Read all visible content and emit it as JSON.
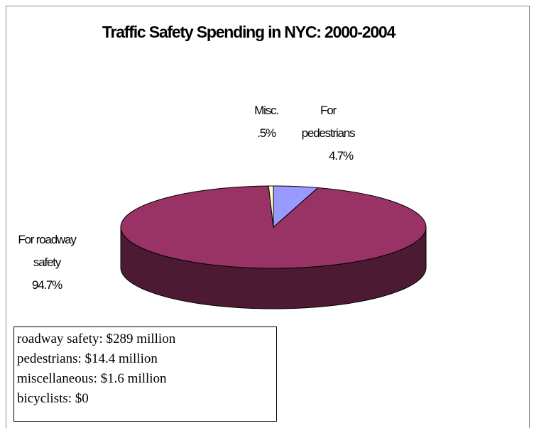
{
  "chart_data": {
    "type": "pie3d",
    "title": "Traffic Safety Spending in NYC: 2000-2004",
    "categories": [
      "For roadway safety",
      "For pedestrians",
      "Misc."
    ],
    "values": [
      94.7,
      4.7,
      0.5
    ],
    "value_labels": [
      "94.7%",
      "4.7%",
      ".5%"
    ],
    "colors": [
      "#993366",
      "#9999ff",
      "#ffffcc"
    ],
    "notes": [
      "roadway safety: $289 million",
      "pedestrians: $14.4 million",
      "miscellaneous: $1.6 million",
      "bicyclists: $0"
    ]
  }
}
